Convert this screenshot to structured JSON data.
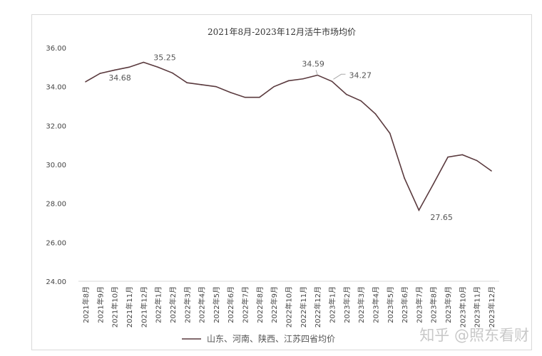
{
  "chart_data": {
    "type": "line",
    "title": "2021年8月-2023年12月活牛市场均价",
    "xlabel": "",
    "ylabel": "",
    "ylim": [
      24,
      36
    ],
    "yticks": [
      "24.00",
      "26.00",
      "28.00",
      "30.00",
      "32.00",
      "34.00",
      "36.00"
    ],
    "grid": false,
    "legend_position": "bottom",
    "categories": [
      "2021年8月",
      "2021年9月",
      "2021年10月",
      "2021年11月",
      "2021年12月",
      "2022年1月",
      "2022年2月",
      "2022年3月",
      "2022年4月",
      "2022年5月",
      "2022年6月",
      "2022年7月",
      "2022年8月",
      "2022年9月",
      "2022年10月",
      "2022年11月",
      "2022年12月",
      "2023年1月",
      "2023年2月",
      "2023年3月",
      "2023年4月",
      "2023年5月",
      "2023年6月",
      "2023年7月",
      "2023年8月",
      "2023年9月",
      "2023年10月",
      "2023年11月",
      "2023年12月"
    ],
    "series": [
      {
        "name": "山东、河南、陕西、江苏四省均价",
        "color": "#5a3a3e",
        "values": [
          34.25,
          34.68,
          34.85,
          35.0,
          35.25,
          35.0,
          34.7,
          34.2,
          34.1,
          34.0,
          33.7,
          33.45,
          33.45,
          34.0,
          34.3,
          34.4,
          34.59,
          34.27,
          33.6,
          33.27,
          32.6,
          31.6,
          29.3,
          27.65,
          29.0,
          30.38,
          30.5,
          30.2,
          29.67
        ]
      }
    ],
    "annotations": [
      {
        "index": 1,
        "text": "34.68"
      },
      {
        "index": 4,
        "text": "35.25"
      },
      {
        "index": 16,
        "text": "34.59"
      },
      {
        "index": 17,
        "text": "34.27"
      },
      {
        "index": 23,
        "text": "27.65"
      }
    ]
  },
  "watermark": "知乎 @照东看财"
}
